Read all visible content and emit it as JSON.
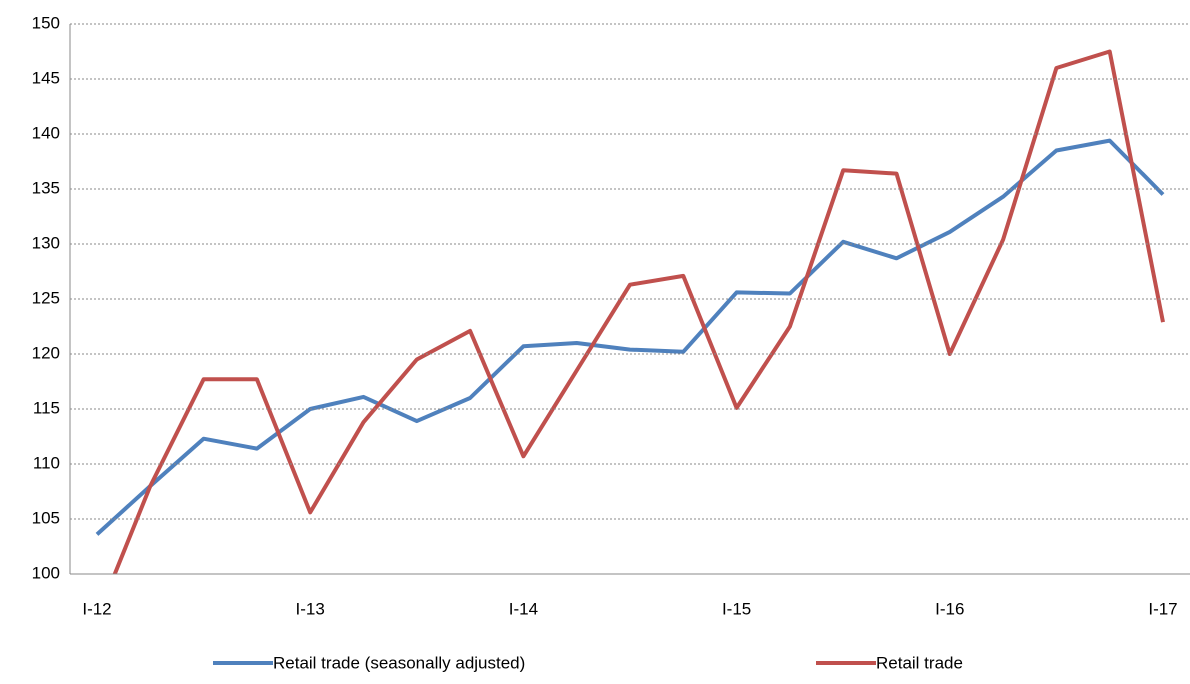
{
  "chart_data": {
    "type": "line",
    "categories": [
      "I-12",
      null,
      null,
      null,
      "I-13",
      null,
      null,
      null,
      "I-14",
      null,
      null,
      null,
      "I-15",
      null,
      null,
      null,
      "I-16",
      null,
      null,
      null,
      "I-17"
    ],
    "series": [
      {
        "name": "Retail trade (seasonally adjusted)",
        "color": "#4f81bd",
        "values": [
          103.6,
          108.0,
          112.3,
          111.4,
          115.0,
          116.1,
          113.9,
          116.0,
          120.7,
          121.0,
          120.4,
          120.2,
          125.6,
          125.5,
          130.2,
          128.7,
          131.1,
          134.3,
          138.5,
          139.4,
          134.5
        ]
      },
      {
        "name": "Retail trade",
        "color": "#c0504d",
        "values": [
          96.0,
          108.0,
          117.7,
          117.7,
          105.6,
          113.8,
          119.5,
          122.1,
          110.7,
          118.5,
          126.3,
          127.1,
          115.1,
          122.5,
          136.7,
          136.4,
          120.0,
          130.4,
          146.0,
          147.5,
          122.9
        ]
      }
    ],
    "ylim": [
      100,
      150
    ],
    "yticks": [
      100,
      105,
      110,
      115,
      120,
      125,
      130,
      135,
      140,
      145,
      150
    ],
    "grid": true,
    "legend": "bottom"
  }
}
